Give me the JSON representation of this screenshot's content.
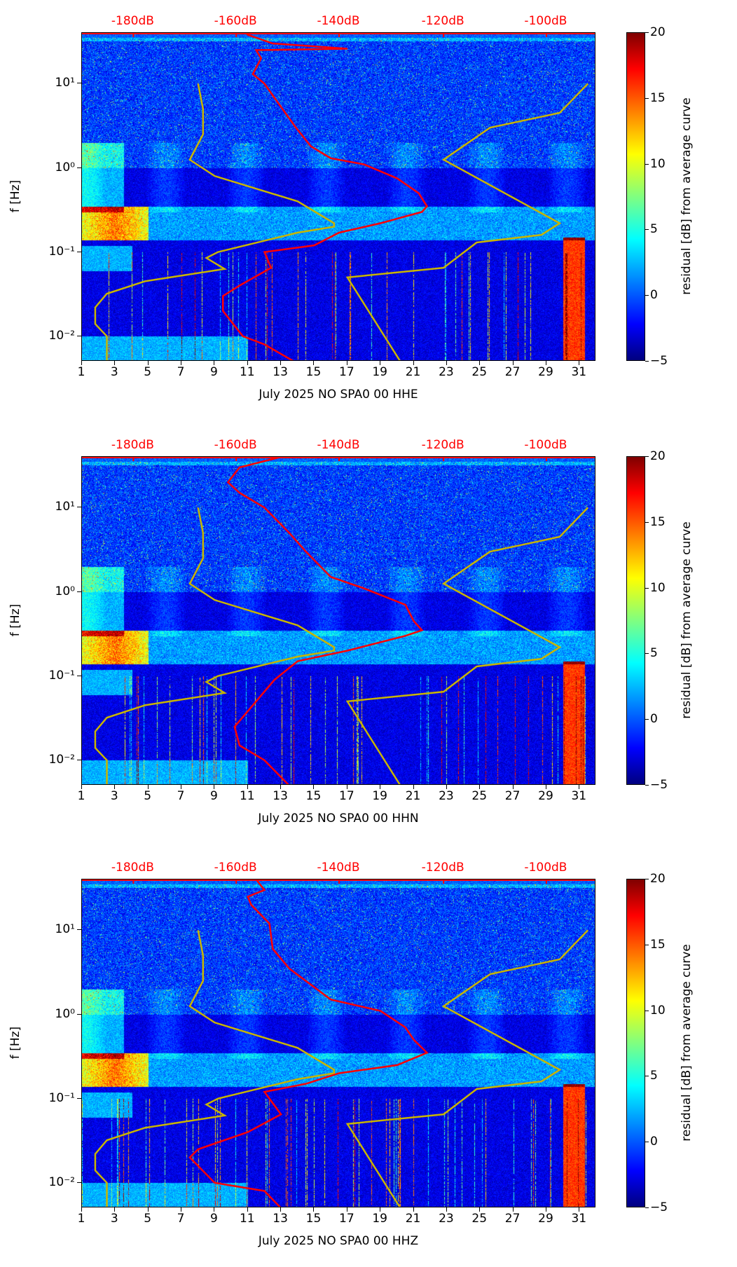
{
  "chart_data": [
    {
      "type": "heatmap",
      "xlabel": "July 2025 NO SPA0 00 HHE",
      "ylabel": "f [Hz]",
      "xlim": [
        1,
        32
      ],
      "ylim": [
        0.005,
        40
      ],
      "yscale": "log",
      "xticks": [
        "1",
        "3",
        "5",
        "7",
        "9",
        "11",
        "13",
        "15",
        "17",
        "19",
        "21",
        "23",
        "25",
        "27",
        "29",
        "31"
      ],
      "yticks": [
        "10⁻²",
        "10⁻¹",
        "10⁰",
        "10¹"
      ],
      "top_axis": {
        "ticks": [
          "-180dB",
          "-160dB",
          "-140dB",
          "-120dB",
          "-100dB"
        ],
        "tick_days": [
          4.1,
          10.3,
          16.5,
          22.8,
          29.0
        ],
        "color": "#ff0000"
      },
      "colorbar": {
        "label": "residual [dB] from average curve",
        "range": [
          -5,
          20
        ],
        "ticks": [
          "20",
          "15",
          "10",
          "5",
          "0",
          "−5"
        ],
        "colormap": "jet"
      },
      "median_psd_curve": {
        "color": "#ff0000",
        "x_day": [
          10.9,
          11,
          12.5,
          17,
          11.5,
          11.8,
          11.3,
          12,
          12.8,
          13.9,
          14.8,
          16,
          18,
          20,
          21.3,
          21.8,
          21.5,
          19,
          16.5,
          15,
          12,
          12.4,
          10.5,
          9.5,
          9.5,
          10.7,
          12,
          13.8
        ],
        "f": [
          40,
          38,
          30,
          26,
          25,
          20,
          13,
          10,
          6,
          3,
          1.8,
          1.3,
          1.1,
          0.75,
          0.5,
          0.35,
          0.3,
          0.22,
          0.17,
          0.12,
          0.1,
          0.065,
          0.04,
          0.03,
          0.02,
          0.01,
          0.008,
          0.005
        ]
      }
    },
    {
      "type": "heatmap",
      "xlabel": "July 2025 NO SPA0 00 HHN",
      "ylabel": "f [Hz]",
      "xlim": [
        1,
        32
      ],
      "ylim": [
        0.005,
        40
      ],
      "yscale": "log",
      "xticks": [
        "1",
        "3",
        "5",
        "7",
        "9",
        "11",
        "13",
        "15",
        "17",
        "19",
        "21",
        "23",
        "25",
        "27",
        "29",
        "31"
      ],
      "yticks": [
        "10⁻²",
        "10⁻¹",
        "10⁰",
        "10¹"
      ],
      "top_axis": {
        "ticks": [
          "-180dB",
          "-160dB",
          "-140dB",
          "-120dB",
          "-100dB"
        ],
        "tick_days": [
          4.1,
          10.3,
          16.5,
          22.8,
          29.0
        ],
        "color": "#ff0000"
      },
      "colorbar": {
        "label": "residual [dB] from average curve",
        "range": [
          -5,
          20
        ],
        "ticks": [
          "20",
          "15",
          "10",
          "5",
          "0",
          "−5"
        ],
        "colormap": "jet"
      },
      "median_psd_curve": {
        "color": "#ff0000",
        "x_day": [
          13,
          10.5,
          9.8,
          10.5,
          12,
          13.5,
          14.5,
          16,
          18,
          20.5,
          21,
          21.5,
          20.5,
          17,
          14,
          12.6,
          11.5,
          10.2,
          10.5,
          12,
          13.5
        ],
        "f": [
          40,
          30,
          20,
          15,
          10,
          5,
          3,
          1.5,
          1.1,
          0.7,
          0.45,
          0.35,
          0.3,
          0.2,
          0.15,
          0.09,
          0.05,
          0.025,
          0.015,
          0.01,
          0.005
        ]
      }
    },
    {
      "type": "heatmap",
      "xlabel": "July 2025 NO SPA0 00 HHZ",
      "ylabel": "f [Hz]",
      "xlim": [
        1,
        32
      ],
      "ylim": [
        0.005,
        40
      ],
      "yscale": "log",
      "xticks": [
        "1",
        "3",
        "5",
        "7",
        "9",
        "11",
        "13",
        "15",
        "17",
        "19",
        "21",
        "23",
        "25",
        "27",
        "29",
        "31"
      ],
      "yticks": [
        "10⁻²",
        "10⁻¹",
        "10⁰",
        "10¹"
      ],
      "top_axis": {
        "ticks": [
          "-180dB",
          "-160dB",
          "-140dB",
          "-120dB",
          "-100dB"
        ],
        "tick_days": [
          4.1,
          10.3,
          16.5,
          22.8,
          29.0
        ],
        "color": "#ff0000"
      },
      "colorbar": {
        "label": "residual [dB] from average curve",
        "range": [
          -5,
          20
        ],
        "ticks": [
          "20",
          "15",
          "10",
          "5",
          "0",
          "−5"
        ],
        "colormap": "jet"
      },
      "median_psd_curve": {
        "color": "#ff0000",
        "x_day": [
          11.5,
          12,
          11,
          11.2,
          12.3,
          12.5,
          13.5,
          16,
          19,
          20.5,
          21,
          21.8,
          20,
          16.5,
          14.5,
          12,
          13,
          11,
          8,
          7.5,
          9,
          12,
          13
        ],
        "f": [
          40,
          30,
          25,
          20,
          12,
          6,
          3.5,
          1.5,
          1.1,
          0.7,
          0.5,
          0.35,
          0.25,
          0.2,
          0.15,
          0.12,
          0.065,
          0.04,
          0.025,
          0.02,
          0.01,
          0.008,
          0.005
        ]
      }
    }
  ],
  "noise_models": {
    "color": "#c8b400",
    "nlnm": {
      "x_day": [
        8,
        8.3,
        8.3,
        7.5,
        9,
        14,
        16.2,
        16.2,
        14,
        9.2,
        8.5,
        9.6,
        4.8,
        2.5,
        1.8,
        1.8,
        2.5,
        2.5
      ],
      "f": [
        10,
        5,
        2.5,
        1.25,
        0.8,
        0.4,
        0.22,
        0.2,
        0.17,
        0.1,
        0.085,
        0.063,
        0.045,
        0.032,
        0.022,
        0.014,
        0.01,
        0.005
      ]
    },
    "nhnm": {
      "x_day": [
        31.5,
        29.8,
        25.6,
        22.8,
        29.8,
        28.7,
        24.8,
        22.8,
        17,
        20.2
      ],
      "f": [
        10,
        4.5,
        3.0,
        1.25,
        0.22,
        0.16,
        0.13,
        0.065,
        0.05,
        0.005
      ]
    }
  }
}
